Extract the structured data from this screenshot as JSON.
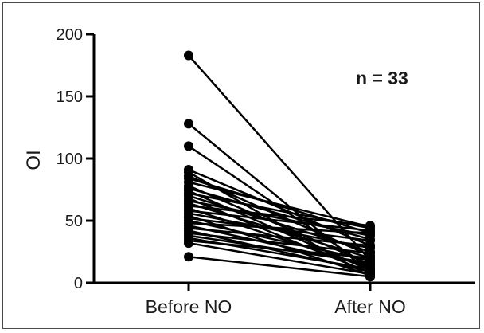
{
  "chart_data": {
    "type": "line",
    "title": "",
    "ylabel": "OI",
    "xlabel": "",
    "categories": [
      "Before NO",
      "After NO"
    ],
    "ylim": [
      0,
      200
    ],
    "yticks": [
      "0",
      "50",
      "100",
      "150",
      "200"
    ],
    "annotation": "n = 33",
    "grid": false,
    "legend": "none",
    "line_color": "#000000",
    "pairs": [
      [
        183,
        18
      ],
      [
        128,
        8
      ],
      [
        110,
        12
      ],
      [
        91,
        30
      ],
      [
        89,
        5
      ],
      [
        86,
        22
      ],
      [
        84,
        40
      ],
      [
        81,
        45
      ],
      [
        78,
        15
      ],
      [
        76,
        35
      ],
      [
        74,
        10
      ],
      [
        72,
        44
      ],
      [
        70,
        25
      ],
      [
        68,
        8
      ],
      [
        66,
        38
      ],
      [
        64,
        20
      ],
      [
        62,
        46
      ],
      [
        60,
        12
      ],
      [
        58,
        42
      ],
      [
        56,
        28
      ],
      [
        54,
        6
      ],
      [
        52,
        34
      ],
      [
        50,
        18
      ],
      [
        48,
        40
      ],
      [
        46,
        14
      ],
      [
        44,
        30
      ],
      [
        42,
        9
      ],
      [
        40,
        24
      ],
      [
        38,
        16
      ],
      [
        36,
        11
      ],
      [
        34,
        20
      ],
      [
        32,
        7
      ],
      [
        21,
        5
      ]
    ]
  }
}
